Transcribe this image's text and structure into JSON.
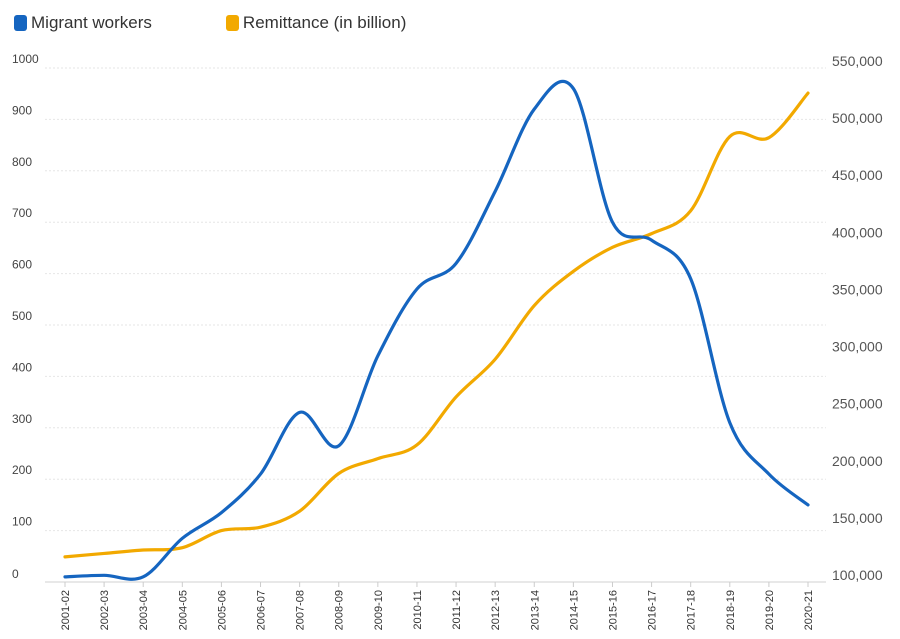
{
  "chart_data": {
    "type": "line",
    "title": "",
    "xlabel": "",
    "ylabel": "",
    "categories": [
      "2001-02",
      "2002-03",
      "2003-04",
      "2004-05",
      "2005-06",
      "2006-07",
      "2007-08",
      "2008-09",
      "2009-10",
      "2010-11",
      "2011-12",
      "2012-13",
      "2013-14",
      "2014-15",
      "2015-16",
      "2016-17",
      "2017-18",
      "2018-19",
      "2019-20",
      "2020-21"
    ],
    "y_left": {
      "min": 0,
      "max": 1000,
      "ticks": [
        0,
        100,
        200,
        300,
        400,
        500,
        600,
        700,
        800,
        900,
        1000
      ]
    },
    "y_right": {
      "min": 100000,
      "max": 550000,
      "ticks": [
        100000,
        150000,
        200000,
        250000,
        300000,
        350000,
        400000,
        450000,
        500000,
        550000
      ],
      "tick_labels": [
        "100,000",
        "150,000",
        "200,000",
        "250,000",
        "300,000",
        "350,000",
        "400,000",
        "450,000",
        "500,000",
        "550,000"
      ]
    },
    "grid": true,
    "legend_position": "top-left",
    "series": [
      {
        "name": "Migrant workers",
        "axis": "left",
        "color": "#1565c0",
        "values": [
          10,
          13,
          10,
          85,
          135,
          210,
          330,
          265,
          440,
          570,
          620,
          760,
          920,
          960,
          700,
          665,
          590,
          310,
          210,
          150
        ]
      },
      {
        "name": "Remittance (in billion)",
        "axis": "right",
        "color": "#f2a900",
        "values": [
          122000,
          125000,
          128000,
          130000,
          145000,
          148000,
          162000,
          195000,
          208000,
          220000,
          262000,
          295000,
          342000,
          372000,
          393000,
          405000,
          425000,
          490000,
          489000,
          528000
        ]
      }
    ]
  }
}
